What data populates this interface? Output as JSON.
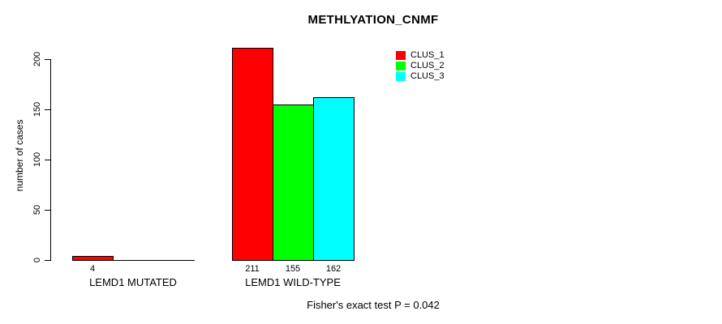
{
  "chart_data": {
    "type": "bar",
    "title": "METHLYATION_CNMF",
    "xlabel": "",
    "ylabel": "number of cases",
    "ylim": [
      0,
      200
    ],
    "yticks": [
      0,
      50,
      100,
      150,
      200
    ],
    "grid": false,
    "legend_position": "top-right",
    "categories": [
      "LEMD1 MUTATED",
      "LEMD1 WILD-TYPE"
    ],
    "series": [
      {
        "name": "CLUS_1",
        "color": "#ff0000",
        "values": [
          4,
          211
        ]
      },
      {
        "name": "CLUS_2",
        "color": "#00ff00",
        "values": [
          0,
          155
        ]
      },
      {
        "name": "CLUS_3",
        "color": "#00ffff",
        "values": [
          0,
          162
        ]
      }
    ],
    "bar_value_labels": [
      "4",
      "211",
      "155",
      "162"
    ],
    "annotation": "Fisher's exact test P = 0.042"
  }
}
